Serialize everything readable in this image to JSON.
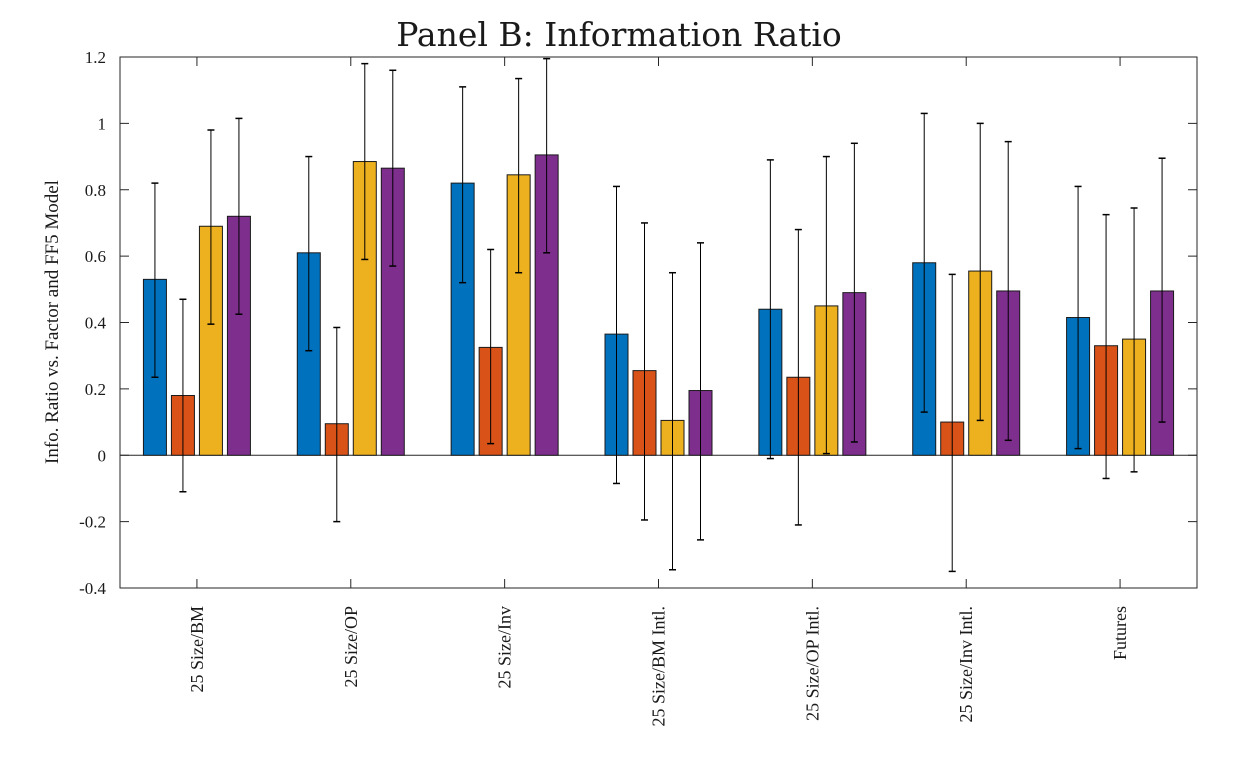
{
  "chart_data": {
    "type": "bar",
    "title": "Panel B: Information Ratio",
    "ylabel": "Info. Ratio vs. Factor and FF5 Model",
    "xlabel": "",
    "ylim": [
      -0.4,
      1.2
    ],
    "yticks": [
      -0.4,
      -0.2,
      0,
      0.2,
      0.4,
      0.6,
      0.8,
      1,
      1.2
    ],
    "ytick_labels": [
      "-0.4",
      "-0.2",
      "0",
      "0.2",
      "0.4",
      "0.6",
      "0.8",
      "1",
      "1.2"
    ],
    "categories": [
      "25 Size/BM",
      "25 Size/OP",
      "25 Size/Inv",
      "25 Size/BM Intl.",
      "25 Size/OP Intl.",
      "25 Size/Inv Intl.",
      "Futures"
    ],
    "legend": "none",
    "grid": false,
    "series": [
      {
        "color": "#0072BD",
        "values": [
          0.53,
          0.61,
          0.82,
          0.365,
          0.44,
          0.58,
          0.415
        ],
        "err_low": [
          0.235,
          0.315,
          0.52,
          -0.085,
          -0.01,
          0.13,
          0.02
        ],
        "err_high": [
          0.82,
          0.9,
          1.11,
          0.81,
          0.89,
          1.03,
          0.81
        ]
      },
      {
        "color": "#D95319",
        "values": [
          0.18,
          0.095,
          0.325,
          0.255,
          0.235,
          0.1,
          0.33
        ],
        "err_low": [
          -0.11,
          -0.2,
          0.035,
          -0.195,
          -0.21,
          -0.35,
          -0.07
        ],
        "err_high": [
          0.47,
          0.385,
          0.62,
          0.7,
          0.68,
          0.545,
          0.725
        ]
      },
      {
        "color": "#EDB120",
        "values": [
          0.69,
          0.885,
          0.845,
          0.105,
          0.45,
          0.555,
          0.35
        ],
        "err_low": [
          0.395,
          0.59,
          0.55,
          -0.345,
          0.005,
          0.105,
          -0.05
        ],
        "err_high": [
          0.98,
          1.18,
          1.135,
          0.55,
          0.9,
          1.0,
          0.745
        ]
      },
      {
        "color": "#7E2F8E",
        "values": [
          0.72,
          0.865,
          0.905,
          0.195,
          0.49,
          0.495,
          0.495
        ],
        "err_low": [
          0.425,
          0.57,
          0.61,
          -0.255,
          0.04,
          0.045,
          0.1
        ],
        "err_high": [
          1.015,
          1.16,
          1.195,
          0.64,
          0.94,
          0.945,
          0.895
        ]
      }
    ]
  }
}
